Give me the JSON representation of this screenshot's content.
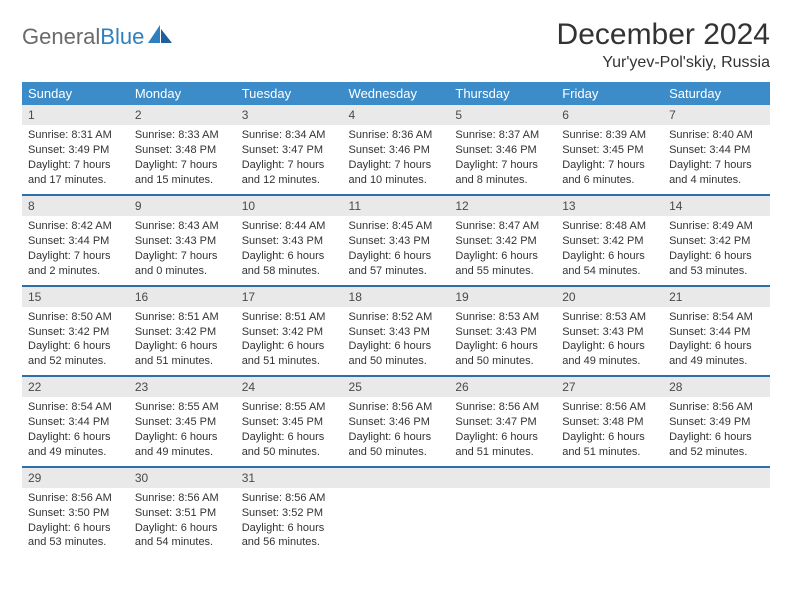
{
  "brand": {
    "word1": "General",
    "word2": "Blue"
  },
  "title": {
    "month": "December 2024",
    "place": "Yur'yev-Pol'skiy, Russia"
  },
  "colors": {
    "header_bg": "#3c8cc9",
    "header_text": "#ffffff",
    "row_divider": "#2f6fa9",
    "daynum_bg": "#e9e9e9",
    "body_text": "#333333",
    "brand_gray": "#6a6a6a",
    "brand_blue": "#2f7fbf"
  },
  "weekdays": [
    "Sunday",
    "Monday",
    "Tuesday",
    "Wednesday",
    "Thursday",
    "Friday",
    "Saturday"
  ],
  "days": [
    {
      "n": "1",
      "sr": "8:31 AM",
      "ss": "3:49 PM",
      "dl": "7 hours and 17 minutes."
    },
    {
      "n": "2",
      "sr": "8:33 AM",
      "ss": "3:48 PM",
      "dl": "7 hours and 15 minutes."
    },
    {
      "n": "3",
      "sr": "8:34 AM",
      "ss": "3:47 PM",
      "dl": "7 hours and 12 minutes."
    },
    {
      "n": "4",
      "sr": "8:36 AM",
      "ss": "3:46 PM",
      "dl": "7 hours and 10 minutes."
    },
    {
      "n": "5",
      "sr": "8:37 AM",
      "ss": "3:46 PM",
      "dl": "7 hours and 8 minutes."
    },
    {
      "n": "6",
      "sr": "8:39 AM",
      "ss": "3:45 PM",
      "dl": "7 hours and 6 minutes."
    },
    {
      "n": "7",
      "sr": "8:40 AM",
      "ss": "3:44 PM",
      "dl": "7 hours and 4 minutes."
    },
    {
      "n": "8",
      "sr": "8:42 AM",
      "ss": "3:44 PM",
      "dl": "7 hours and 2 minutes."
    },
    {
      "n": "9",
      "sr": "8:43 AM",
      "ss": "3:43 PM",
      "dl": "7 hours and 0 minutes."
    },
    {
      "n": "10",
      "sr": "8:44 AM",
      "ss": "3:43 PM",
      "dl": "6 hours and 58 minutes."
    },
    {
      "n": "11",
      "sr": "8:45 AM",
      "ss": "3:43 PM",
      "dl": "6 hours and 57 minutes."
    },
    {
      "n": "12",
      "sr": "8:47 AM",
      "ss": "3:42 PM",
      "dl": "6 hours and 55 minutes."
    },
    {
      "n": "13",
      "sr": "8:48 AM",
      "ss": "3:42 PM",
      "dl": "6 hours and 54 minutes."
    },
    {
      "n": "14",
      "sr": "8:49 AM",
      "ss": "3:42 PM",
      "dl": "6 hours and 53 minutes."
    },
    {
      "n": "15",
      "sr": "8:50 AM",
      "ss": "3:42 PM",
      "dl": "6 hours and 52 minutes."
    },
    {
      "n": "16",
      "sr": "8:51 AM",
      "ss": "3:42 PM",
      "dl": "6 hours and 51 minutes."
    },
    {
      "n": "17",
      "sr": "8:51 AM",
      "ss": "3:42 PM",
      "dl": "6 hours and 51 minutes."
    },
    {
      "n": "18",
      "sr": "8:52 AM",
      "ss": "3:43 PM",
      "dl": "6 hours and 50 minutes."
    },
    {
      "n": "19",
      "sr": "8:53 AM",
      "ss": "3:43 PM",
      "dl": "6 hours and 50 minutes."
    },
    {
      "n": "20",
      "sr": "8:53 AM",
      "ss": "3:43 PM",
      "dl": "6 hours and 49 minutes."
    },
    {
      "n": "21",
      "sr": "8:54 AM",
      "ss": "3:44 PM",
      "dl": "6 hours and 49 minutes."
    },
    {
      "n": "22",
      "sr": "8:54 AM",
      "ss": "3:44 PM",
      "dl": "6 hours and 49 minutes."
    },
    {
      "n": "23",
      "sr": "8:55 AM",
      "ss": "3:45 PM",
      "dl": "6 hours and 49 minutes."
    },
    {
      "n": "24",
      "sr": "8:55 AM",
      "ss": "3:45 PM",
      "dl": "6 hours and 50 minutes."
    },
    {
      "n": "25",
      "sr": "8:56 AM",
      "ss": "3:46 PM",
      "dl": "6 hours and 50 minutes."
    },
    {
      "n": "26",
      "sr": "8:56 AM",
      "ss": "3:47 PM",
      "dl": "6 hours and 51 minutes."
    },
    {
      "n": "27",
      "sr": "8:56 AM",
      "ss": "3:48 PM",
      "dl": "6 hours and 51 minutes."
    },
    {
      "n": "28",
      "sr": "8:56 AM",
      "ss": "3:49 PM",
      "dl": "6 hours and 52 minutes."
    },
    {
      "n": "29",
      "sr": "8:56 AM",
      "ss": "3:50 PM",
      "dl": "6 hours and 53 minutes."
    },
    {
      "n": "30",
      "sr": "8:56 AM",
      "ss": "3:51 PM",
      "dl": "6 hours and 54 minutes."
    },
    {
      "n": "31",
      "sr": "8:56 AM",
      "ss": "3:52 PM",
      "dl": "6 hours and 56 minutes."
    }
  ],
  "labels": {
    "sunrise": "Sunrise:",
    "sunset": "Sunset:",
    "daylight": "Daylight:"
  },
  "layout": {
    "first_weekday_index": 0,
    "total_cells": 35,
    "cols": 7,
    "rows": 5
  }
}
